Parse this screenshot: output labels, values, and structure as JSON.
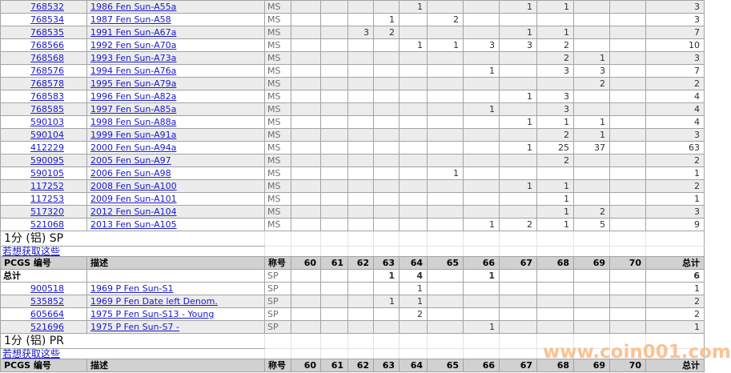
{
  "columns": {
    "pcgs_label": "PCGS 编号",
    "desc_label": "描述",
    "designation_label": "称号",
    "grades": [
      "60",
      "61",
      "62",
      "63",
      "64",
      "65",
      "66",
      "67",
      "68",
      "69",
      "70"
    ],
    "total_label": "总计"
  },
  "ms_table": {
    "rows": [
      {
        "pcgs": "768532",
        "desc": "1986 Fen Sun-A55a",
        "designation": "MS",
        "counts": [
          "",
          "",
          "",
          "",
          "1",
          "",
          "",
          "1",
          "1",
          "",
          ""
        ],
        "total": "3"
      },
      {
        "pcgs": "768534",
        "desc": "1987 Fen Sun-A58",
        "designation": "MS",
        "counts": [
          "",
          "",
          "",
          "1",
          "",
          "2",
          "",
          "",
          "",
          "",
          ""
        ],
        "total": "3"
      },
      {
        "pcgs": "768535",
        "desc": "1991 Fen Sun-A67a",
        "designation": "MS",
        "counts": [
          "",
          "",
          "3",
          "2",
          "",
          "",
          "",
          "1",
          "1",
          "",
          ""
        ],
        "total": "7"
      },
      {
        "pcgs": "768566",
        "desc": "1992 Fen Sun-A70a",
        "designation": "MS",
        "counts": [
          "",
          "",
          "",
          "",
          "1",
          "1",
          "3",
          "3",
          "2",
          "",
          ""
        ],
        "total": "10"
      },
      {
        "pcgs": "768568",
        "desc": "1993 Fen Sun-A73a",
        "designation": "MS",
        "counts": [
          "",
          "",
          "",
          "",
          "",
          "",
          "",
          "",
          "2",
          "1",
          ""
        ],
        "total": "3"
      },
      {
        "pcgs": "768576",
        "desc": "1994 Fen Sun-A76a",
        "designation": "MS",
        "counts": [
          "",
          "",
          "",
          "",
          "",
          "",
          "1",
          "",
          "3",
          "3",
          ""
        ],
        "total": "7"
      },
      {
        "pcgs": "768578",
        "desc": "1995 Fen Sun-A79a",
        "designation": "MS",
        "counts": [
          "",
          "",
          "",
          "",
          "",
          "",
          "",
          "",
          "",
          "2",
          ""
        ],
        "total": "2"
      },
      {
        "pcgs": "768583",
        "desc": "1996 Fen Sun-A82a",
        "designation": "MS",
        "counts": [
          "",
          "",
          "",
          "",
          "",
          "",
          "",
          "1",
          "3",
          "",
          ""
        ],
        "total": "4"
      },
      {
        "pcgs": "768585",
        "desc": "1997 Fen Sun-A85a",
        "designation": "MS",
        "counts": [
          "",
          "",
          "",
          "",
          "",
          "",
          "1",
          "",
          "3",
          "",
          ""
        ],
        "total": "4"
      },
      {
        "pcgs": "590103",
        "desc": "1998 Fen Sun-A88a",
        "designation": "MS",
        "counts": [
          "",
          "",
          "",
          "",
          "",
          "",
          "",
          "1",
          "1",
          "1",
          ""
        ],
        "total": "4"
      },
      {
        "pcgs": "590104",
        "desc": "1999 Fen Sun-A91a",
        "designation": "MS",
        "counts": [
          "",
          "",
          "",
          "",
          "",
          "",
          "",
          "",
          "2",
          "1",
          ""
        ],
        "total": "3"
      },
      {
        "pcgs": "412229",
        "desc": "2000 Fen Sun-A94a",
        "designation": "MS",
        "counts": [
          "",
          "",
          "",
          "",
          "",
          "",
          "",
          "1",
          "25",
          "37",
          ""
        ],
        "total": "63"
      },
      {
        "pcgs": "590095",
        "desc": "2005 Fen Sun-A97",
        "designation": "MS",
        "counts": [
          "",
          "",
          "",
          "",
          "",
          "",
          "",
          "",
          "2",
          "",
          ""
        ],
        "total": "2"
      },
      {
        "pcgs": "590105",
        "desc": "2006 Fen Sun-A98",
        "designation": "MS",
        "counts": [
          "",
          "",
          "",
          "",
          "",
          "1",
          "",
          "",
          "",
          "",
          ""
        ],
        "total": "1"
      },
      {
        "pcgs": "117252",
        "desc": "2008 Fen Sun-A100",
        "designation": "MS",
        "counts": [
          "",
          "",
          "",
          "",
          "",
          "",
          "",
          "1",
          "1",
          "",
          ""
        ],
        "total": "2"
      },
      {
        "pcgs": "117253",
        "desc": "2009 Fen Sun-A101",
        "designation": "MS",
        "counts": [
          "",
          "",
          "",
          "",
          "",
          "",
          "",
          "",
          "1",
          "",
          ""
        ],
        "total": "1"
      },
      {
        "pcgs": "517320",
        "desc": "2012 Fen Sun-A104",
        "designation": "MS",
        "counts": [
          "",
          "",
          "",
          "",
          "",
          "",
          "",
          "",
          "1",
          "2",
          ""
        ],
        "total": "3"
      },
      {
        "pcgs": "521068",
        "desc": "2013 Fen Sun-A105",
        "designation": "MS",
        "counts": [
          "",
          "",
          "",
          "",
          "",
          "",
          "1",
          "2",
          "1",
          "5",
          ""
        ],
        "total": "9"
      }
    ]
  },
  "sp_section": {
    "title": "1分 (铝) SP",
    "more_link": "若想获取这些",
    "totals_row": {
      "label": "总计",
      "designation": "SP",
      "counts": [
        "",
        "",
        "",
        "1",
        "4",
        "",
        "1",
        "",
        "",
        "",
        ""
      ],
      "total": "6"
    },
    "rows": [
      {
        "pcgs": "900518",
        "desc": "1969 P Fen Sun-S1",
        "designation": "SP",
        "counts": [
          "",
          "",
          "",
          "",
          "1",
          "",
          "",
          "",
          "",
          "",
          ""
        ],
        "total": "1"
      },
      {
        "pcgs": "535852",
        "desc": "1969 P Fen Date left Denom.",
        "designation": "SP",
        "counts": [
          "",
          "",
          "",
          "1",
          "1",
          "",
          "",
          "",
          "",
          "",
          ""
        ],
        "total": "2"
      },
      {
        "pcgs": "605664",
        "desc": "1975 P Fen Sun-S13 - Young",
        "designation": "SP",
        "counts": [
          "",
          "",
          "",
          "",
          "2",
          "",
          "",
          "",
          "",
          "",
          ""
        ],
        "total": "2"
      },
      {
        "pcgs": "521696",
        "desc": "1975 P Fen Sun-S7 -",
        "designation": "SP",
        "counts": [
          "",
          "",
          "",
          "",
          "",
          "",
          "1",
          "",
          "",
          "",
          ""
        ],
        "total": "1"
      }
    ]
  },
  "pr_section": {
    "title": "1分 (铝) PR",
    "more_link": "若想获取这些"
  },
  "watermark": "www.coin001.com",
  "colors": {
    "link_blue": "#1818cf",
    "stripe_gray": "#ececec",
    "header_gray": "#d1d1d1",
    "watermark_orange": "#f9be8a"
  }
}
